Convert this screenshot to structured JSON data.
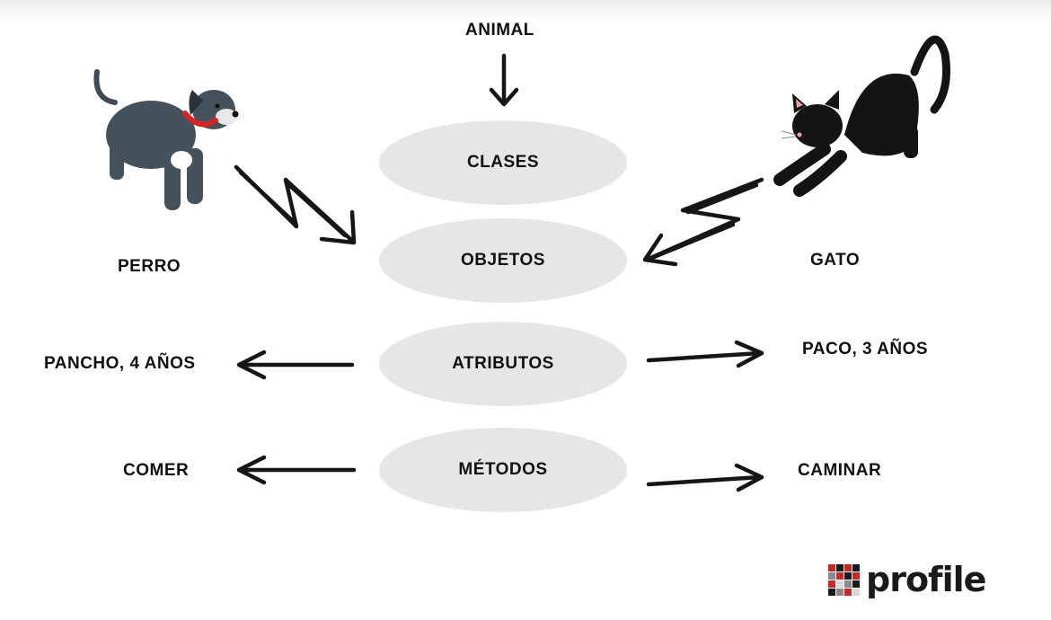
{
  "diagram": {
    "top_label": "ANIMAL",
    "stages": {
      "classes": "CLASES",
      "objects": "OBJETOS",
      "attributes": "ATRIBUTOS",
      "methods": "MÉTODOS"
    },
    "left": {
      "object": "PERRO",
      "attribute": "PANCHO, 4 AÑOS",
      "method": "COMER"
    },
    "right": {
      "object": "GATO",
      "attribute": "PACO, 3 AÑOS",
      "method": "CAMINAR"
    }
  },
  "logo": {
    "text": "profile",
    "mark_colors": [
      "#c62828",
      "#1a1a1a",
      "#8a8a8a",
      "#d9d9d9"
    ]
  },
  "icons": [
    "dog-illustration",
    "cat-illustration",
    "arrow-icon"
  ]
}
